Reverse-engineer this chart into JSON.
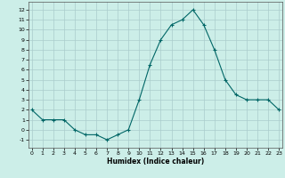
{
  "x": [
    0,
    1,
    2,
    3,
    4,
    5,
    6,
    7,
    8,
    9,
    10,
    11,
    12,
    13,
    14,
    15,
    16,
    17,
    18,
    19,
    20,
    21,
    22,
    23
  ],
  "y": [
    2.0,
    1.0,
    1.0,
    1.0,
    0.0,
    -0.5,
    -0.5,
    -1.0,
    -0.5,
    0.0,
    3.0,
    6.5,
    9.0,
    10.5,
    11.0,
    12.0,
    10.5,
    8.0,
    5.0,
    3.5,
    3.0,
    3.0,
    3.0,
    2.0
  ],
  "xlabel": "Humidex (Indice chaleur)",
  "ylim": [
    -1.8,
    12.8
  ],
  "xlim": [
    -0.3,
    23.3
  ],
  "yticks": [
    -1,
    0,
    1,
    2,
    3,
    4,
    5,
    6,
    7,
    8,
    9,
    10,
    11,
    12
  ],
  "xticks": [
    0,
    1,
    2,
    3,
    4,
    5,
    6,
    7,
    8,
    9,
    10,
    11,
    12,
    13,
    14,
    15,
    16,
    17,
    18,
    19,
    20,
    21,
    22,
    23
  ],
  "line_color": "#006666",
  "marker": "+",
  "bg_color": "#cceee8",
  "grid_color": "#aacccc"
}
